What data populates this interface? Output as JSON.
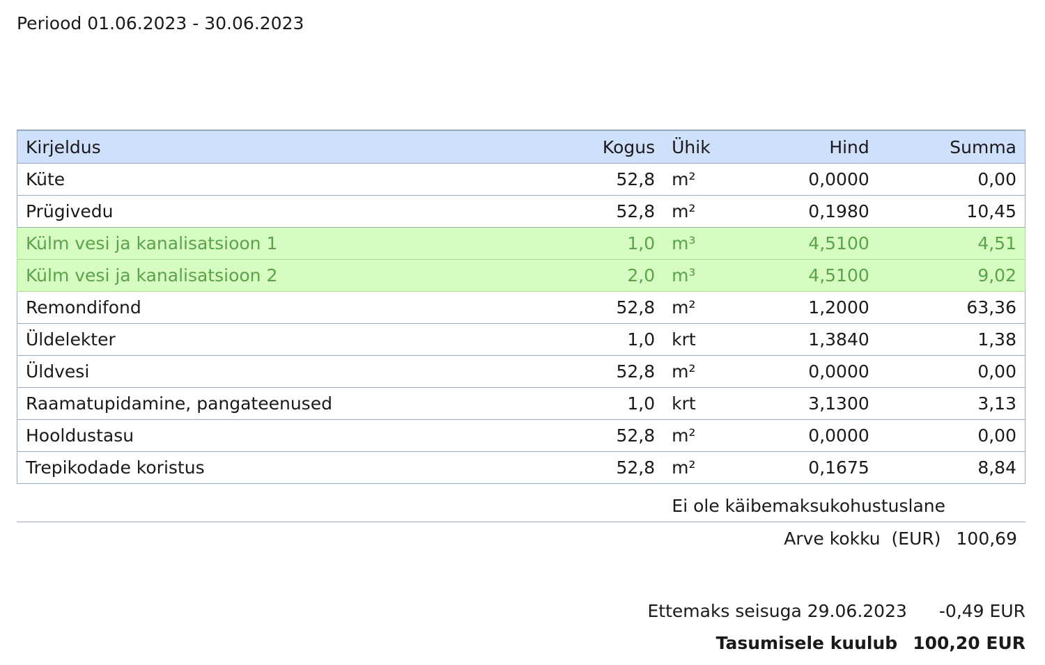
{
  "period": "Periood 01.06.2023 - 30.06.2023",
  "table": {
    "headers": {
      "description": "Kirjeldus",
      "quantity": "Kogus",
      "unit": "Ühik",
      "price": "Hind",
      "sum": "Summa"
    },
    "rows": [
      {
        "description": "Küte",
        "quantity": "52,8",
        "unit": "m²",
        "price": "0,0000",
        "sum": "0,00"
      },
      {
        "description": "Prügivedu",
        "quantity": "52,8",
        "unit": "m²",
        "price": "0,1980",
        "sum": "10,45"
      },
      {
        "description": "Külm vesi ja kanalisatsioon 1",
        "quantity": "1,0",
        "unit": "m³",
        "price": "4,5100",
        "sum": "4,51"
      },
      {
        "description": "Külm vesi ja kanalisatsioon 2",
        "quantity": "2,0",
        "unit": "m³",
        "price": "4,5100",
        "sum": "9,02"
      },
      {
        "description": "Remondifond",
        "quantity": "52,8",
        "unit": "m²",
        "price": "1,2000",
        "sum": "63,36"
      },
      {
        "description": "Üldelekter",
        "quantity": "1,0",
        "unit": "krt",
        "price": "1,3840",
        "sum": "1,38"
      },
      {
        "description": "Üldvesi",
        "quantity": "52,8",
        "unit": "m²",
        "price": "0,0000",
        "sum": "0,00"
      },
      {
        "description": "Raamatupidamine, pangateenused",
        "quantity": "1,0",
        "unit": "krt",
        "price": "3,1300",
        "sum": "3,13"
      },
      {
        "description": "Hooldustasu",
        "quantity": "52,8",
        "unit": "m²",
        "price": "0,0000",
        "sum": "0,00"
      },
      {
        "description": "Trepikodade koristus",
        "quantity": "52,8",
        "unit": "m²",
        "price": "0,1675",
        "sum": "8,84"
      }
    ]
  },
  "vat_note": "Ei ole käibemaksukohustuslane",
  "total": {
    "label": "Arve kokku  (EUR)",
    "value": "100,69"
  },
  "prepayment": {
    "label": "Ettemaks seisuga 29.06.2023",
    "value": "-0,49 EUR"
  },
  "amount_due": {
    "label": "Tasumisele kuulub",
    "value": "100,20 EUR"
  },
  "colors": {
    "header_bg": "#cfe0fb",
    "highlight_bg": "#d6fcc2",
    "highlight_text": "#5aa34a",
    "border": "#9aa8bd"
  }
}
